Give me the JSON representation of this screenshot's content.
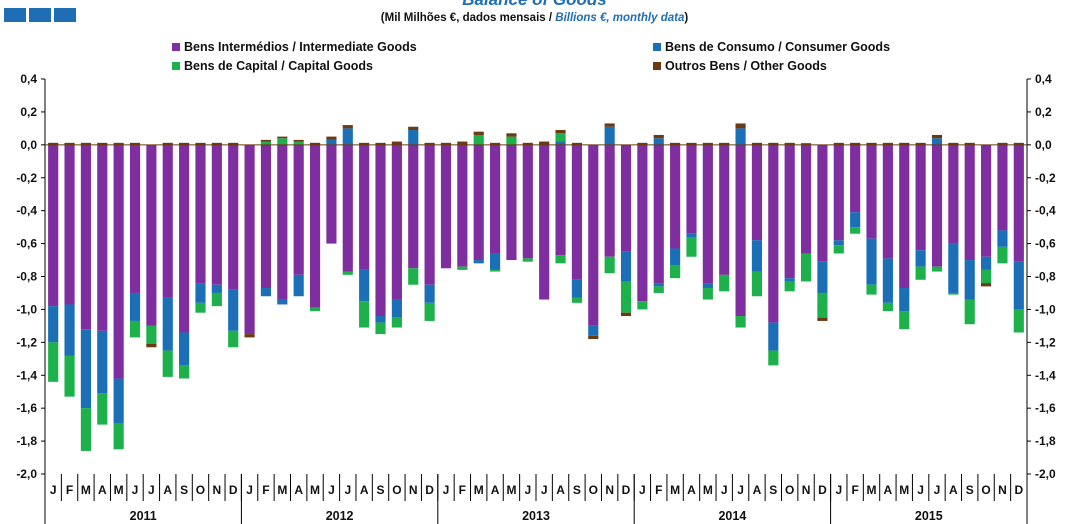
{
  "title": "Balance of Goods",
  "subtitle": {
    "pt": "(Mil Milhões €, dados mensais / ",
    "en": "Billions  €, monthly data",
    "close": ")"
  },
  "colors": {
    "intermediate": "#7f2ea0",
    "consumer": "#1b6fb6",
    "capital": "#1db14b",
    "other": "#6b3a12"
  },
  "legend": {
    "intermediate": "Bens Intermédios / Intermediate Goods",
    "consumer": "Bens de Consumo / Consumer Goods",
    "capital": "Bens de Capital / Capital Goods",
    "other": "Outros Bens / Other Goods"
  },
  "chart_data": {
    "type": "bar",
    "stacked": true,
    "ylim": [
      -2.0,
      0.4
    ],
    "yticks": [
      "0,4",
      "0,2",
      "0,0",
      "-0,2",
      "-0,4",
      "-0,6",
      "-0,8",
      "-1,0",
      "-1,2",
      "-1,4",
      "-1,6",
      "-1,8",
      "-2,0"
    ],
    "month_labels": [
      "J",
      "F",
      "M",
      "A",
      "M",
      "J",
      "J",
      "A",
      "S",
      "O",
      "N",
      "D"
    ],
    "years": [
      "2011",
      "2012",
      "2013",
      "2014",
      "2015"
    ],
    "legend_position": "top",
    "series": [
      {
        "name": "Bens Intermédios / Intermediate Goods",
        "values": [
          -0.98,
          -0.97,
          -1.12,
          -1.13,
          -1.42,
          -0.9,
          -1.1,
          -0.93,
          -1.14,
          -0.84,
          -0.85,
          -0.88,
          -1.15,
          -0.87,
          -0.94,
          -0.79,
          -0.99,
          -0.6,
          -0.77,
          -0.76,
          -1.04,
          -0.94,
          -0.75,
          -0.85,
          -0.75,
          -0.74,
          -0.7,
          -0.66,
          -0.7,
          -0.69,
          -0.94,
          -0.67,
          -0.82,
          -1.1,
          -0.68,
          -0.65,
          -0.95,
          -0.84,
          -0.63,
          -0.54,
          -0.84,
          -0.79,
          -1.04,
          -0.58,
          -1.08,
          -0.81,
          -0.66,
          -0.71,
          -0.58,
          -0.41,
          -0.57,
          -0.69,
          -0.87,
          -0.64,
          -0.74,
          -0.6,
          -0.7,
          -0.68,
          -0.52,
          -0.71
        ]
      },
      {
        "name": "Bens de Consumo / Consumer Goods",
        "values": [
          0,
          0,
          0,
          0,
          0,
          0,
          0,
          0,
          0,
          0,
          0,
          0,
          0,
          0,
          0,
          0,
          0,
          0.03,
          0.1,
          0,
          0,
          0,
          0.09,
          0,
          0,
          0,
          0,
          0,
          0,
          0,
          0,
          0.02,
          0,
          0,
          0.11,
          0,
          0,
          0.04,
          0,
          0,
          0,
          0.01,
          0.1,
          0,
          0,
          0,
          0,
          0,
          0,
          0,
          0,
          0,
          0,
          0,
          0.04,
          0,
          0,
          0,
          0,
          0
        ]
      },
      {
        "name": "Bens de Capital / Capital Goods",
        "values": [
          0,
          0,
          0,
          0,
          0,
          0,
          0,
          0,
          0,
          0,
          0,
          0,
          0,
          0.02,
          0.04,
          0.02,
          0,
          0,
          0,
          0,
          0,
          0,
          0,
          0,
          0,
          0,
          0.06,
          0,
          0.05,
          0,
          0,
          0.05,
          0,
          0,
          0,
          0,
          0,
          0,
          0,
          0,
          0,
          0,
          0,
          0,
          0,
          0,
          0,
          0,
          0,
          0,
          0,
          0,
          0,
          0,
          0,
          0,
          0,
          0,
          0,
          0
        ]
      },
      {
        "name": "Outros Bens / Other Goods",
        "values": [
          0,
          0,
          0,
          0,
          0,
          0,
          -0.02,
          0,
          0,
          0,
          0,
          0,
          -0.02,
          0.01,
          0.01,
          0.01,
          0,
          0.02,
          0.02,
          0,
          0,
          0.02,
          0.02,
          0,
          0,
          0.02,
          0.02,
          0,
          0.02,
          0,
          0.02,
          0.02,
          0,
          -0.02,
          0.02,
          -0.02,
          0,
          0.02,
          0,
          0,
          0,
          0,
          0.03,
          0,
          0,
          0,
          0.01,
          -0.02,
          0,
          0,
          0,
          0,
          0,
          0,
          0.02,
          0,
          0,
          -0.02,
          0,
          0
        ]
      }
    ],
    "negative_segments": {
      "consumer": [
        -0.22,
        -0.31,
        -0.48,
        -0.38,
        -0.27,
        -0.17,
        0,
        -0.32,
        -0.2,
        -0.12,
        -0.05,
        -0.25,
        0,
        -0.05,
        -0.03,
        -0.13,
        0,
        0,
        0,
        -0.19,
        -0.04,
        -0.11,
        0,
        -0.11,
        0,
        0,
        -0.02,
        -0.1,
        0,
        0,
        0,
        0,
        -0.11,
        -0.06,
        0,
        -0.18,
        0,
        -0.02,
        -0.1,
        -0.02,
        -0.03,
        0,
        0,
        -0.19,
        -0.17,
        -0.02,
        0,
        -0.19,
        -0.03,
        -0.09,
        -0.28,
        -0.27,
        -0.14,
        -0.1,
        0,
        -0.3,
        -0.24,
        -0.08,
        -0.1,
        -0.29
      ],
      "capital": [
        -0.24,
        -0.25,
        -0.26,
        -0.19,
        -0.16,
        -0.1,
        -0.11,
        -0.16,
        -0.08,
        -0.06,
        -0.08,
        -0.1,
        0,
        0,
        0,
        0,
        -0.02,
        0,
        -0.02,
        -0.16,
        -0.07,
        -0.06,
        -0.1,
        -0.11,
        0,
        -0.02,
        0,
        -0.01,
        0,
        -0.02,
        0,
        -0.05,
        -0.03,
        0,
        -0.1,
        -0.19,
        -0.05,
        -0.04,
        -0.08,
        -0.12,
        -0.07,
        -0.1,
        -0.07,
        -0.15,
        -0.09,
        -0.06,
        -0.17,
        -0.15,
        -0.05,
        -0.04,
        -0.06,
        -0.05,
        -0.11,
        -0.08,
        -0.03,
        -0.01,
        -0.15,
        -0.08,
        -0.1,
        -0.14
      ]
    }
  }
}
